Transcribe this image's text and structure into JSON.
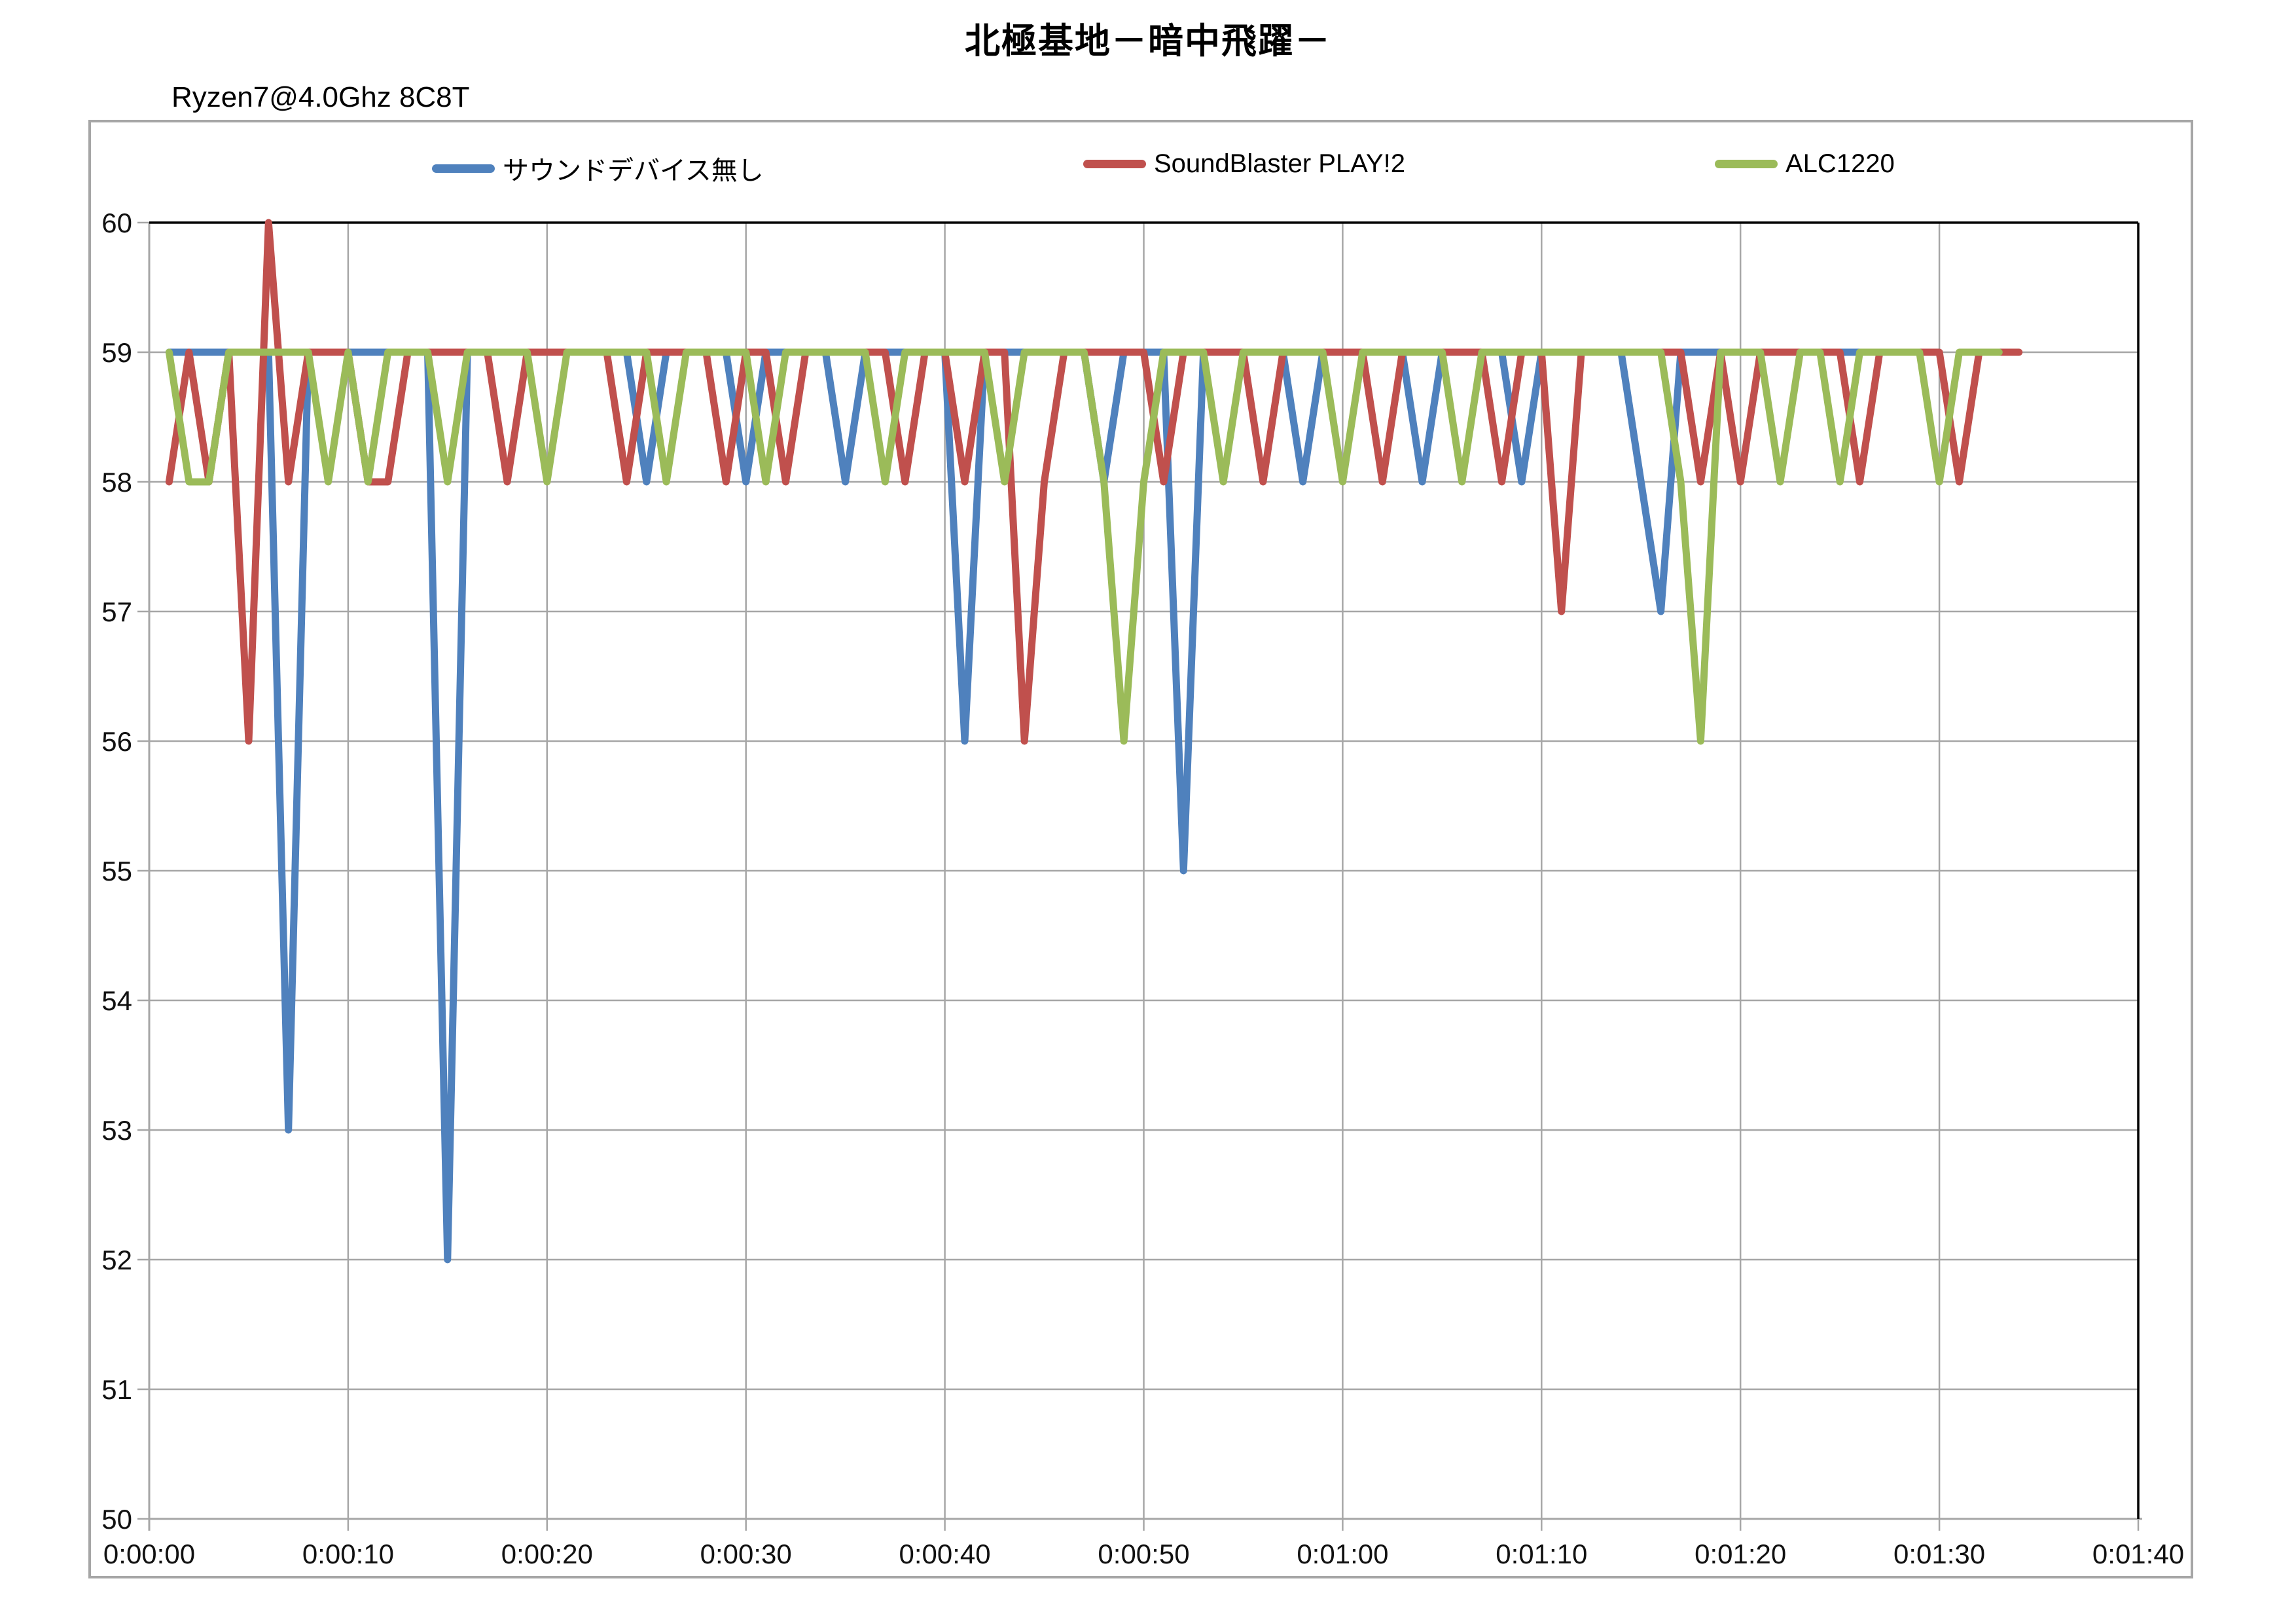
{
  "title": "北極基地－暗中飛躍－",
  "subtitle": "Ryzen7@4.0Ghz 8C8T",
  "colors": {
    "series_blue": "#4F81BD",
    "series_red": "#C0504D",
    "series_green": "#9BBB59",
    "gridline": "#A6A6A6",
    "plot_border": "#000000",
    "frame_border": "#A6A6A6",
    "text": "#111111"
  },
  "chart_data": {
    "type": "line",
    "title": "北極基地－暗中飛躍－",
    "subtitle": "Ryzen7@4.0Ghz 8C8T",
    "grid": true,
    "legend_position": "top-inside",
    "xlabel": "",
    "ylabel": "",
    "x_axis": {
      "unit": "time (h:mm:ss)",
      "tick_interval_seconds": 10,
      "range_seconds": [
        0,
        100
      ],
      "tick_labels": [
        "0:00:00",
        "0:00:10",
        "0:00:20",
        "0:00:30",
        "0:00:40",
        "0:00:50",
        "0:01:00",
        "0:01:10",
        "0:01:20",
        "0:01:30",
        "0:01:40"
      ]
    },
    "y_axis": {
      "ylim": [
        50,
        60
      ],
      "ticks": [
        50,
        51,
        52,
        53,
        54,
        55,
        56,
        57,
        58,
        59,
        60
      ]
    },
    "sample_interval_seconds": 1,
    "series": [
      {
        "name": "サウンドデバイス無し",
        "color": "#4F81BD",
        "start_second": 1,
        "values": [
          59,
          59,
          59,
          59,
          59,
          59,
          53,
          59,
          59,
          59,
          59,
          59,
          59,
          59,
          52,
          59,
          59,
          59,
          59,
          59,
          59,
          59,
          59,
          59,
          58,
          59,
          59,
          59,
          59,
          58,
          59,
          59,
          59,
          59,
          58,
          59,
          59,
          59,
          59,
          59,
          56,
          59,
          59,
          59,
          59,
          59,
          59,
          58,
          59,
          59,
          59,
          55,
          59,
          59,
          59,
          59,
          59,
          58,
          59,
          59,
          59,
          59,
          59,
          58,
          59,
          59,
          59,
          59,
          58,
          59,
          59,
          59,
          59,
          59,
          58,
          57,
          59,
          59,
          59,
          59,
          59,
          59,
          59,
          59,
          59,
          59,
          59,
          59
        ]
      },
      {
        "name": "SoundBlaster PLAY!2",
        "color": "#C0504D",
        "start_second": 1,
        "values": [
          58,
          59,
          58,
          59,
          56,
          60,
          58,
          59,
          59,
          59,
          58,
          58,
          59,
          59,
          59,
          59,
          59,
          58,
          59,
          59,
          59,
          59,
          59,
          58,
          59,
          59,
          59,
          59,
          58,
          59,
          59,
          58,
          59,
          59,
          59,
          59,
          59,
          58,
          59,
          59,
          58,
          59,
          59,
          56,
          58,
          59,
          59,
          59,
          59,
          59,
          58,
          59,
          59,
          59,
          59,
          58,
          59,
          59,
          59,
          59,
          59,
          58,
          59,
          59,
          59,
          59,
          59,
          58,
          59,
          59,
          57,
          59,
          59,
          59,
          59,
          59,
          59,
          58,
          59,
          58,
          59,
          59,
          59,
          59,
          59,
          58,
          59,
          59,
          59,
          59,
          58,
          59,
          59,
          59
        ]
      },
      {
        "name": "ALC1220",
        "color": "#9BBB59",
        "start_second": 1,
        "values": [
          59,
          58,
          58,
          59,
          59,
          59,
          59,
          59,
          58,
          59,
          58,
          59,
          59,
          59,
          58,
          59,
          59,
          59,
          59,
          58,
          59,
          59,
          59,
          59,
          59,
          58,
          59,
          59,
          59,
          59,
          58,
          59,
          59,
          59,
          59,
          59,
          58,
          59,
          59,
          59,
          59,
          59,
          58,
          59,
          59,
          59,
          59,
          58,
          56,
          58,
          59,
          59,
          59,
          58,
          59,
          59,
          59,
          59,
          59,
          58,
          59,
          59,
          59,
          59,
          59,
          58,
          59,
          59,
          59,
          59,
          59,
          59,
          59,
          59,
          59,
          59,
          58,
          56,
          59,
          59,
          59,
          58,
          59,
          59,
          58,
          59,
          59,
          59,
          59,
          58,
          59,
          59,
          59
        ]
      }
    ]
  }
}
